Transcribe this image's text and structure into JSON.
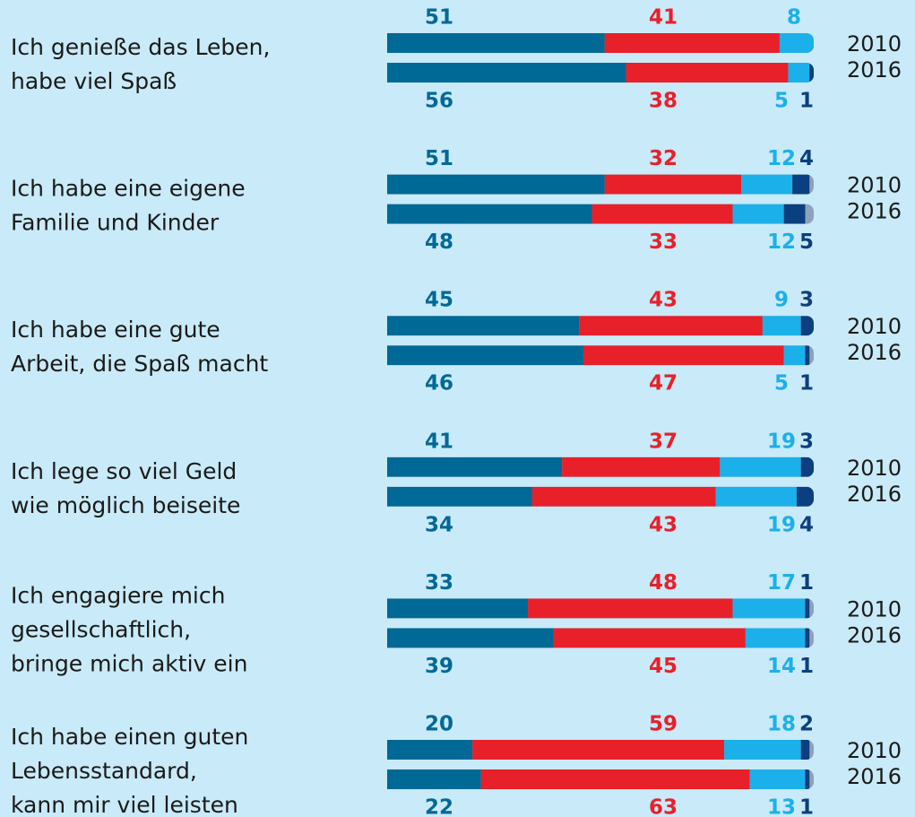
{
  "chart_data": {
    "type": "stacked-bar",
    "colors": [
      "#006996",
      "#e8202a",
      "#1bb0ea",
      "#0b3f7f"
    ],
    "xlim": [
      0,
      100
    ],
    "groups": [
      {
        "label": [
          "Ich genieße das Leben,",
          "habe viel Spaß"
        ],
        "bars": [
          {
            "year": "2010",
            "values": [
              51,
              41,
              8
            ]
          },
          {
            "year": "2016",
            "values": [
              56,
              38,
              5,
              1
            ]
          }
        ]
      },
      {
        "label": [
          "Ich habe eine eigene",
          "Familie und Kinder"
        ],
        "bars": [
          {
            "year": "2010",
            "values": [
              51,
              32,
              12,
              4
            ]
          },
          {
            "year": "2016",
            "values": [
              48,
              33,
              12,
              5
            ]
          }
        ]
      },
      {
        "label": [
          "Ich habe eine gute",
          "Arbeit, die Spaß macht"
        ],
        "bars": [
          {
            "year": "2010",
            "values": [
              45,
              43,
              9,
              3
            ]
          },
          {
            "year": "2016",
            "values": [
              46,
              47,
              5,
              1
            ]
          }
        ]
      },
      {
        "label": [
          "Ich lege so viel Geld",
          "wie möglich beiseite"
        ],
        "bars": [
          {
            "year": "2010",
            "values": [
              41,
              37,
              19,
              3
            ]
          },
          {
            "year": "2016",
            "values": [
              34,
              43,
              19,
              4
            ]
          }
        ]
      },
      {
        "label": [
          "Ich engagiere mich",
          "gesellschaftlich,",
          "bringe mich aktiv ein"
        ],
        "bars": [
          {
            "year": "2010",
            "values": [
              33,
              48,
              17,
              1
            ]
          },
          {
            "year": "2016",
            "values": [
              39,
              45,
              14,
              1
            ]
          }
        ]
      },
      {
        "label": [
          "Ich habe einen guten",
          "Lebensstandard,",
          "kann mir viel leisten"
        ],
        "bars": [
          {
            "year": "2010",
            "values": [
              20,
              59,
              18,
              2
            ]
          },
          {
            "year": "2016",
            "values": [
              22,
              63,
              13,
              1
            ]
          }
        ]
      }
    ]
  }
}
